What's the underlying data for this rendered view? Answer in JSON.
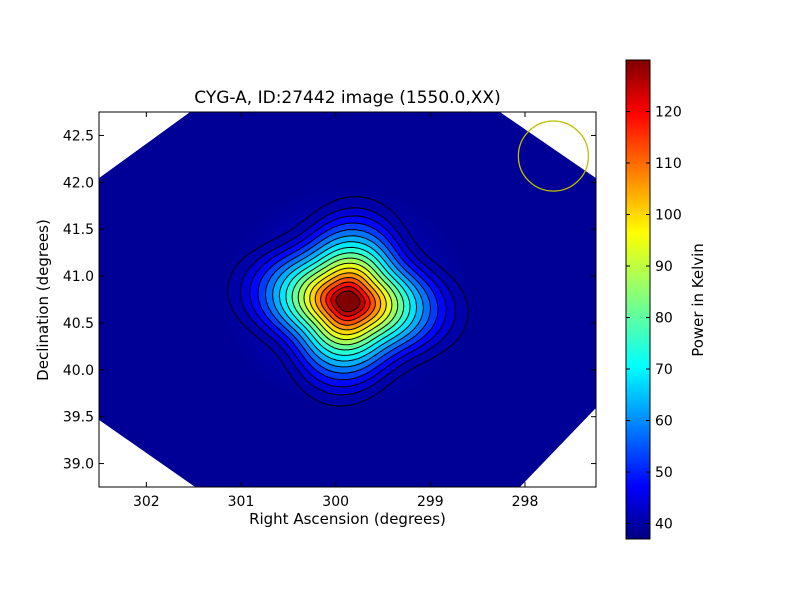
{
  "chart_data": {
    "type": "heatmap",
    "title": "CYG-A, ID:27442 image (1550.0,XX)",
    "xlabel": "Right Ascension (degrees)",
    "ylabel": "Declination (degrees)",
    "xlim": [
      302.5,
      297.25
    ],
    "ylim": [
      38.75,
      42.75
    ],
    "x_ticks": [
      302,
      301,
      300,
      299,
      298
    ],
    "y_ticks": [
      39.0,
      39.5,
      40.0,
      40.5,
      41.0,
      41.5,
      42.0,
      42.5
    ],
    "x_tick_labels": [
      "302",
      "301",
      "300",
      "299",
      "298"
    ],
    "y_tick_labels": [
      "39.0",
      "39.5",
      "40.0",
      "40.5",
      "41.0",
      "41.5",
      "42.0",
      "42.5"
    ],
    "colormap": "jet",
    "colorbar": {
      "label": "Power in Kelvin",
      "range": [
        37,
        130
      ],
      "ticks": [
        40,
        50,
        60,
        70,
        80,
        90,
        100,
        110,
        120
      ],
      "tick_labels": [
        "40",
        "50",
        "60",
        "70",
        "80",
        "90",
        "100",
        "110",
        "120"
      ]
    },
    "source": {
      "ra_center": 299.87,
      "dec_center": 40.73,
      "peak_kelvin": 130,
      "background_kelvin": 38,
      "contour_count": 17
    },
    "beam_circle": {
      "ra_center": 297.7,
      "dec_center": 42.28,
      "radius_deg": 0.37,
      "color": "#bfbf00"
    },
    "masked_corner_color": "#ffffff"
  }
}
